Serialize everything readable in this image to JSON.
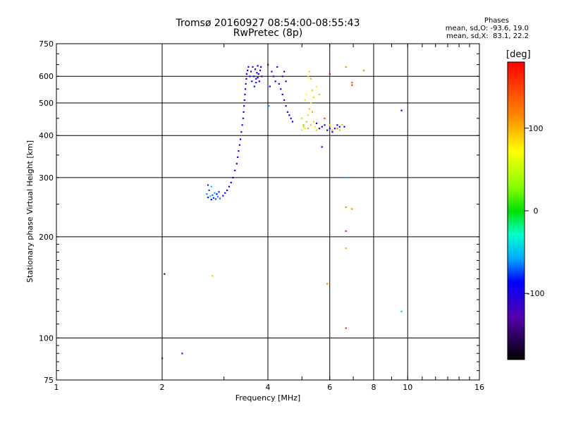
{
  "chart_data": {
    "type": "scatter",
    "title": "Tromsø 20160927 08:54:00-08:55:43",
    "subtitle": "RwPretec (8p)",
    "xlabel": "Frequency [MHz]",
    "ylabel": "Stationary phase Virtual Height [km]",
    "x_scale": "log",
    "y_scale": "log",
    "xlim": [
      1,
      16
    ],
    "ylim": [
      75,
      750
    ],
    "x_ticks": [
      1,
      2,
      4,
      6,
      8,
      10,
      16
    ],
    "x_tick_labels": [
      "1",
      "2",
      "4",
      "6",
      "8",
      "10",
      "16"
    ],
    "y_ticks": [
      75,
      100,
      200,
      300,
      400,
      500,
      600,
      750
    ],
    "y_tick_labels": [
      "75",
      "100",
      "200",
      "300",
      "400",
      "500",
      "600",
      "750"
    ],
    "grid": true,
    "stats": {
      "header": "Phases",
      "line1": "mean, sd,O: -93.6, 19.0",
      "line2": "mean, sd,X:  83.1, 22.2"
    },
    "colorbar": {
      "label": "[deg]",
      "ticks": [
        100,
        0,
        -100
      ],
      "tick_labels": [
        "100",
        "0",
        "-100"
      ],
      "range": [
        -180,
        180
      ]
    },
    "points": [
      [
        2.0,
        87,
        -150
      ],
      [
        2.03,
        155,
        -160
      ],
      [
        2.28,
        90,
        -90
      ],
      [
        2.78,
        153,
        100
      ],
      [
        2.68,
        268,
        -60
      ],
      [
        2.7,
        262,
        -95
      ],
      [
        2.72,
        275,
        -85
      ],
      [
        2.74,
        264,
        -40
      ],
      [
        2.76,
        258,
        -100
      ],
      [
        2.78,
        266,
        -70
      ],
      [
        2.8,
        261,
        -90
      ],
      [
        2.82,
        270,
        -50
      ],
      [
        2.84,
        259,
        -80
      ],
      [
        2.86,
        268,
        -100
      ],
      [
        2.88,
        263,
        -60
      ],
      [
        2.9,
        272,
        -90
      ],
      [
        2.92,
        260,
        -70
      ],
      [
        2.7,
        285,
        -90
      ],
      [
        2.76,
        282,
        -45
      ],
      [
        2.98,
        265,
        -110
      ],
      [
        3.02,
        270,
        -105
      ],
      [
        3.06,
        275,
        -110
      ],
      [
        3.1,
        282,
        -100
      ],
      [
        3.14,
        290,
        -110
      ],
      [
        3.18,
        300,
        -105
      ],
      [
        3.22,
        315,
        -110
      ],
      [
        3.26,
        330,
        -100
      ],
      [
        3.28,
        345,
        -110
      ],
      [
        3.3,
        360,
        -105
      ],
      [
        3.32,
        375,
        -110
      ],
      [
        3.34,
        390,
        -100
      ],
      [
        3.36,
        410,
        -110
      ],
      [
        3.38,
        430,
        -105
      ],
      [
        3.4,
        450,
        -110
      ],
      [
        3.41,
        470,
        -100
      ],
      [
        3.42,
        490,
        -110
      ],
      [
        3.43,
        510,
        -105
      ],
      [
        3.44,
        530,
        -110
      ],
      [
        3.45,
        550,
        -100
      ],
      [
        3.46,
        570,
        -110
      ],
      [
        3.47,
        590,
        -105
      ],
      [
        3.48,
        610,
        -110
      ],
      [
        3.5,
        625,
        -100
      ],
      [
        3.52,
        640,
        -110
      ],
      [
        3.55,
        600,
        -105
      ],
      [
        3.58,
        620,
        -110
      ],
      [
        3.6,
        580,
        -100
      ],
      [
        3.62,
        640,
        -110
      ],
      [
        3.65,
        600,
        -105
      ],
      [
        3.68,
        630,
        -110
      ],
      [
        3.7,
        590,
        -100
      ],
      [
        3.72,
        615,
        -110
      ],
      [
        3.74,
        645,
        -105
      ],
      [
        3.76,
        610,
        -110
      ],
      [
        3.78,
        580,
        -100
      ],
      [
        3.8,
        625,
        -110
      ],
      [
        3.82,
        640,
        -105
      ],
      [
        3.84,
        600,
        -110
      ],
      [
        3.66,
        560,
        -100
      ],
      [
        3.7,
        575,
        -110
      ],
      [
        3.74,
        595,
        -105
      ],
      [
        4.0,
        650,
        -160
      ],
      [
        4.02,
        490,
        -60
      ],
      [
        4.05,
        560,
        -110
      ],
      [
        4.1,
        620,
        -105
      ],
      [
        4.15,
        600,
        -110
      ],
      [
        4.2,
        580,
        -100
      ],
      [
        4.25,
        640,
        -110
      ],
      [
        4.3,
        570,
        -105
      ],
      [
        4.35,
        550,
        -110
      ],
      [
        4.4,
        530,
        -100
      ],
      [
        4.45,
        510,
        -110
      ],
      [
        4.5,
        490,
        -105
      ],
      [
        4.55,
        470,
        -110
      ],
      [
        4.6,
        460,
        -100
      ],
      [
        4.65,
        450,
        -110
      ],
      [
        4.7,
        440,
        -105
      ],
      [
        4.4,
        600,
        -110
      ],
      [
        4.45,
        620,
        -100
      ],
      [
        4.5,
        580,
        -105
      ],
      [
        5.0,
        450,
        100
      ],
      [
        5.05,
        430,
        110
      ],
      [
        5.1,
        420,
        90
      ],
      [
        5.15,
        440,
        105
      ],
      [
        5.2,
        460,
        95
      ],
      [
        5.25,
        480,
        100
      ],
      [
        5.3,
        500,
        85
      ],
      [
        5.35,
        470,
        110
      ],
      [
        5.4,
        440,
        100
      ],
      [
        5.45,
        425,
        90
      ],
      [
        5.5,
        415,
        100
      ],
      [
        5.2,
        600,
        100
      ],
      [
        5.25,
        620,
        95
      ],
      [
        5.3,
        590,
        105
      ],
      [
        5.1,
        510,
        90
      ],
      [
        5.15,
        530,
        80
      ],
      [
        5.35,
        545,
        100
      ],
      [
        5.4,
        520,
        95
      ],
      [
        5.2,
        420,
        110
      ],
      [
        5.3,
        430,
        100
      ],
      [
        5.5,
        560,
        85
      ],
      [
        5.6,
        530,
        100
      ],
      [
        5.0,
        415,
        60
      ],
      [
        5.05,
        425,
        40
      ],
      [
        5.5,
        435,
        -100
      ],
      [
        5.6,
        420,
        -110
      ],
      [
        5.7,
        425,
        -100
      ],
      [
        5.8,
        430,
        -110
      ],
      [
        5.9,
        415,
        -105
      ],
      [
        6.0,
        420,
        -110
      ],
      [
        6.1,
        410,
        -100
      ],
      [
        6.2,
        420,
        -110
      ],
      [
        6.3,
        430,
        -105
      ],
      [
        6.4,
        425,
        -100
      ],
      [
        6.5,
        430,
        -110
      ],
      [
        6.6,
        425,
        -105
      ],
      [
        5.7,
        370,
        -100
      ],
      [
        5.8,
        450,
        150
      ],
      [
        6.0,
        610,
        175
      ],
      [
        6.0,
        430,
        95
      ],
      [
        6.1,
        415,
        110
      ],
      [
        6.3,
        420,
        130
      ],
      [
        6.4,
        415,
        100
      ],
      [
        6.5,
        430,
        90
      ],
      [
        5.9,
        145,
        120
      ],
      [
        6.67,
        300,
        -50
      ],
      [
        6.67,
        640,
        120
      ],
      [
        6.67,
        245,
        120
      ],
      [
        6.67,
        208,
        170
      ],
      [
        6.67,
        185,
        110
      ],
      [
        6.67,
        107,
        160
      ],
      [
        6.94,
        242,
        120
      ],
      [
        6.94,
        575,
        145
      ],
      [
        6.94,
        565,
        160
      ],
      [
        7.5,
        625,
        120
      ],
      [
        9.6,
        475,
        -100
      ],
      [
        9.6,
        120,
        -40
      ]
    ]
  }
}
